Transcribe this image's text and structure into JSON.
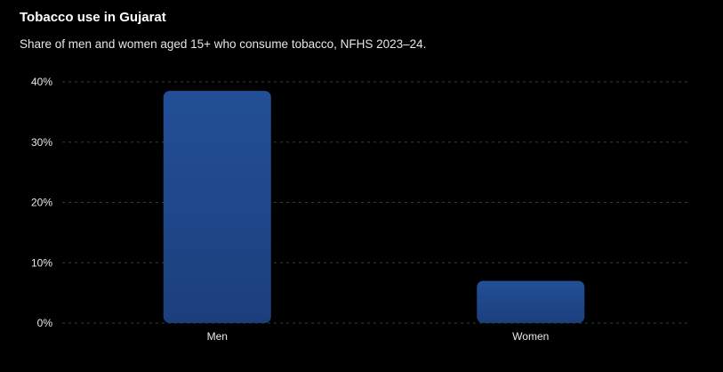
{
  "chart_data": {
    "type": "bar",
    "title": "Tobacco use in Gujarat",
    "subtitle": "Share of men and women aged 15+ who consume tobacco, NFHS 2023–24.",
    "categories": [
      "Men",
      "Women"
    ],
    "values": [
      38.5,
      7.0
    ],
    "value_format": "percent",
    "ylim": [
      0,
      40
    ],
    "y_ticks": [
      0,
      10,
      20,
      30,
      40
    ],
    "y_tick_labels": [
      "0%",
      "10%",
      "20%",
      "30%",
      "40%"
    ],
    "xlabel": "",
    "ylabel": "",
    "grid": true,
    "legend": "none",
    "bar_color_top": "#234f97",
    "bar_color_bottom": "#1c3f7c",
    "grid_color": "#3a3a3a",
    "background": "#000000"
  }
}
